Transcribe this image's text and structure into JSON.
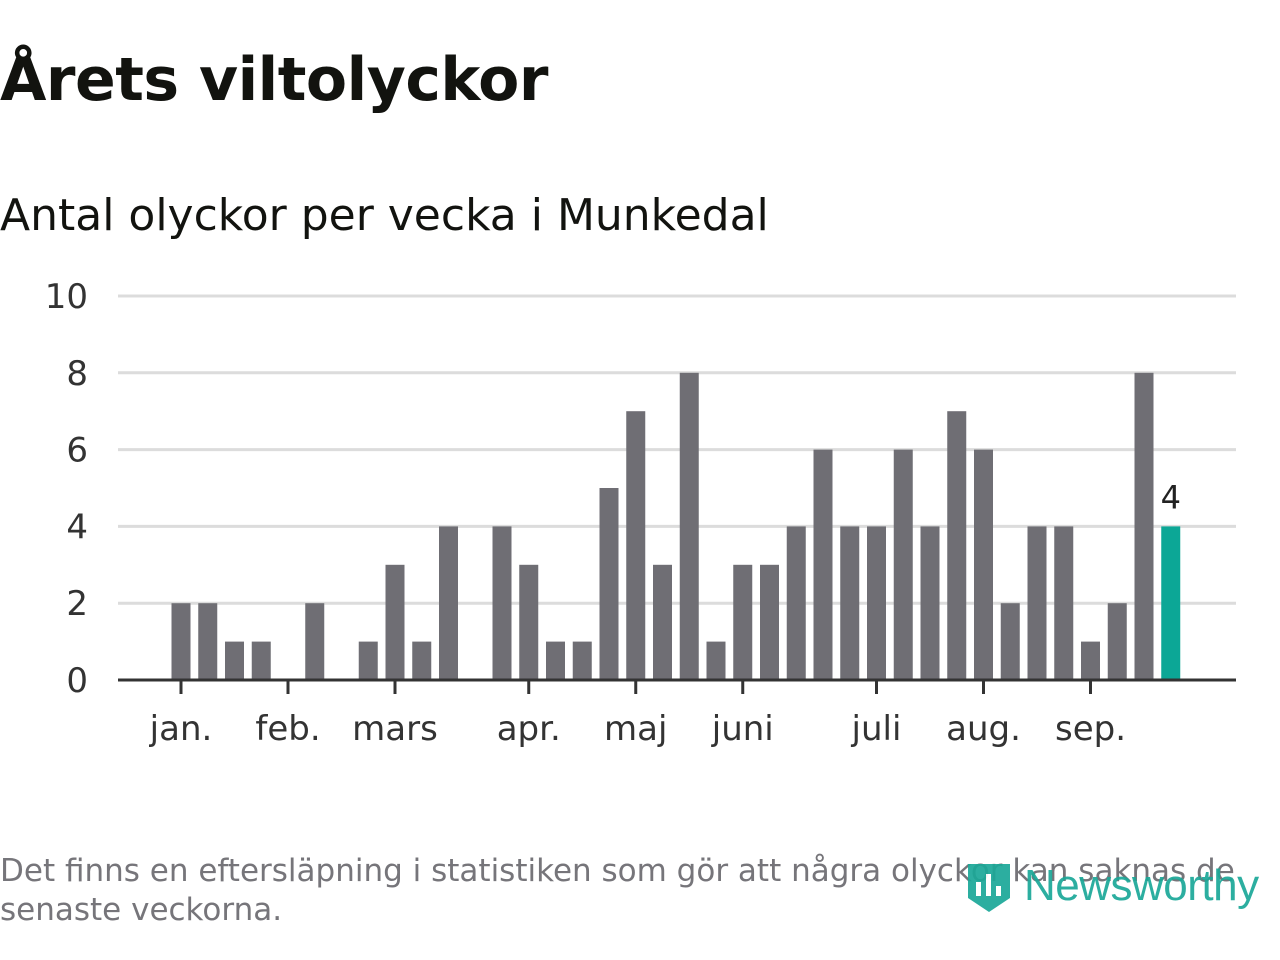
{
  "title": "Årets viltolyckor",
  "subtitle": "Antal olyckor per vecka i Munkedal",
  "footnote": "Det finns en eftersläpning i statistiken som gör att några olyckor kan saknas de senaste veckorna.",
  "brand": {
    "name": "Newsworthy",
    "icon": "newsworthy-logo-icon",
    "color": "#1ba898"
  },
  "colors": {
    "bar": "#6f6e74",
    "highlight": "#0ca796",
    "grid": "#dcdcdc",
    "axis": "#333333",
    "text": "#333333"
  },
  "chart_data": {
    "type": "bar",
    "title": "Antal olyckor per vecka i Munkedal",
    "xlabel": "",
    "ylabel": "",
    "ylim": [
      0,
      10
    ],
    "yticks": [
      0,
      2,
      4,
      6,
      8,
      10
    ],
    "grid": true,
    "weeks": [
      1,
      2,
      3,
      4,
      5,
      6,
      7,
      8,
      9,
      10,
      11,
      12,
      13,
      14,
      15,
      16,
      17,
      18,
      19,
      20,
      21,
      22,
      23,
      24,
      25,
      26,
      27,
      28,
      29,
      30,
      31,
      32,
      33,
      34,
      35,
      36,
      37,
      38,
      39,
      40,
      41,
      42,
      43,
      44
    ],
    "values": [
      0,
      0,
      2,
      2,
      1,
      1,
      0,
      2,
      0,
      1,
      3,
      1,
      4,
      0,
      4,
      3,
      1,
      1,
      5,
      7,
      3,
      8,
      1,
      3,
      3,
      4,
      6,
      4,
      4,
      6,
      4,
      7,
      6,
      2,
      4,
      4,
      1,
      2,
      8,
      4,
      null,
      null,
      null,
      null
    ],
    "highlight_index": 39,
    "highlight_label": "4",
    "month_ticks": [
      {
        "label": "jan.",
        "week": 3
      },
      {
        "label": "feb.",
        "week": 7
      },
      {
        "label": "mars",
        "week": 11
      },
      {
        "label": "apr.",
        "week": 16
      },
      {
        "label": "maj",
        "week": 20
      },
      {
        "label": "juni",
        "week": 24
      },
      {
        "label": "juli",
        "week": 29
      },
      {
        "label": "aug.",
        "week": 33
      },
      {
        "label": "sep.",
        "week": 37
      }
    ]
  }
}
